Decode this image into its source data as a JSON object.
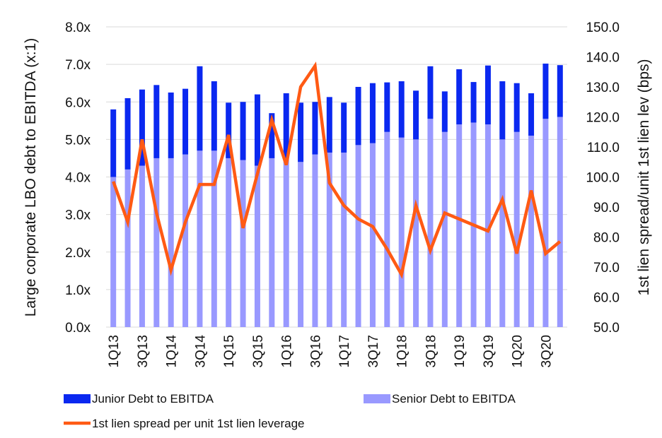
{
  "chart_data": {
    "type": "bar",
    "stacked": true,
    "categories": [
      "1Q13",
      "2Q13",
      "3Q13",
      "4Q13",
      "1Q14",
      "2Q14",
      "3Q14",
      "4Q14",
      "1Q15",
      "2Q15",
      "3Q15",
      "4Q15",
      "1Q16",
      "2Q16",
      "3Q16",
      "4Q16",
      "1Q17",
      "2Q17",
      "3Q17",
      "4Q17",
      "1Q18",
      "2Q18",
      "3Q18",
      "4Q18",
      "1Q19",
      "2Q19",
      "3Q19",
      "4Q19",
      "1Q20",
      "2Q20",
      "3Q20",
      "4Q20"
    ],
    "tick_labels": [
      "1Q13",
      "3Q13",
      "1Q14",
      "3Q14",
      "1Q15",
      "3Q15",
      "1Q16",
      "3Q16",
      "1Q17",
      "3Q17",
      "1Q18",
      "3Q18",
      "1Q19",
      "3Q19",
      "1Q20",
      "3Q20"
    ],
    "series": [
      {
        "name": "Senior Debt to EBITDA",
        "axis": "left",
        "type": "bar",
        "color": "#9999ff",
        "values": [
          4.0,
          4.2,
          4.3,
          4.5,
          4.5,
          4.6,
          4.7,
          4.7,
          4.5,
          4.45,
          4.3,
          4.5,
          4.5,
          4.4,
          4.6,
          4.65,
          4.65,
          4.85,
          4.9,
          5.2,
          5.05,
          5.0,
          5.55,
          5.2,
          5.4,
          5.45,
          5.4,
          5.0,
          5.2,
          5.1,
          5.55,
          5.6
        ]
      },
      {
        "name": "Junior Debt to EBITDA",
        "axis": "left",
        "type": "bar",
        "color": "#0a28f0",
        "values": [
          1.8,
          1.9,
          2.03,
          1.95,
          1.75,
          1.75,
          2.25,
          1.85,
          1.48,
          1.55,
          1.9,
          1.2,
          1.73,
          1.58,
          1.4,
          1.48,
          1.33,
          1.55,
          1.6,
          1.32,
          1.5,
          1.3,
          1.4,
          1.08,
          1.47,
          1.08,
          1.57,
          1.55,
          1.3,
          1.13,
          1.47,
          1.38
        ]
      },
      {
        "name": "1st lien spread per unit 1st lien leverage",
        "axis": "right",
        "type": "line",
        "color": "#ff5a14",
        "values": [
          98.5,
          85,
          112.5,
          88,
          69,
          85,
          97.5,
          97.5,
          114,
          83,
          101,
          119,
          104,
          130,
          137,
          98,
          90.5,
          86,
          83.5,
          76,
          67.5,
          90.5,
          75.5,
          88,
          86,
          84,
          82,
          92.5,
          74.5,
          95.5,
          74.5,
          78.5
        ]
      }
    ],
    "left_axis": {
      "title": "Large corporate LBO debt to EBITDA (x:1)",
      "min": 0,
      "max": 8,
      "step": 1,
      "tick_labels": [
        "0.0x",
        "1.0x",
        "2.0x",
        "3.0x",
        "4.0x",
        "5.0x",
        "6.0x",
        "7.0x",
        "8.0x"
      ]
    },
    "right_axis": {
      "title": "1st lien spread/unit 1st lien lev (bps)",
      "min": 50,
      "max": 150,
      "step": 10,
      "tick_labels": [
        "50.0",
        "60.0",
        "70.0",
        "80.0",
        "90.0",
        "100.0",
        "110.0",
        "120.0",
        "130.0",
        "140.0",
        "150.0"
      ]
    },
    "grid": true,
    "legend_position": "bottom",
    "legend": [
      {
        "label": "Junior Debt to EBITDA",
        "color": "#0a28f0",
        "shape": "bar"
      },
      {
        "label": "Senior Debt to EBITDA",
        "color": "#9999ff",
        "shape": "bar"
      },
      {
        "label": "1st lien spread per unit 1st lien leverage",
        "color": "#ff5a14",
        "shape": "line"
      }
    ]
  }
}
